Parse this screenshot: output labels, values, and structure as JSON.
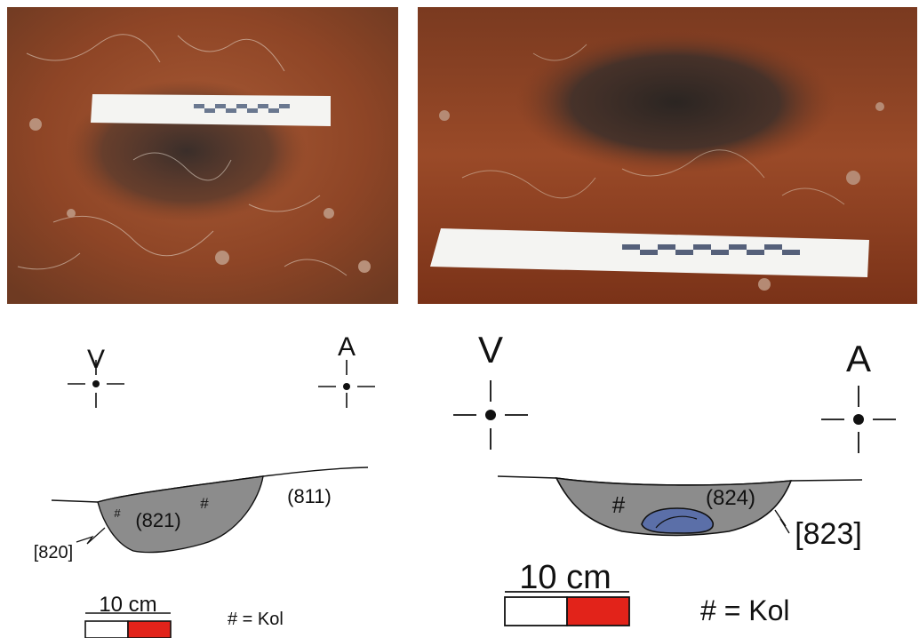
{
  "left_panel": {
    "direction_left": "V",
    "direction_right": "A",
    "layer_fill_label": "(821)",
    "layer_surround_label": "(811)",
    "cut_label": "[820]",
    "charcoal_marks": [
      "#",
      "#"
    ],
    "scale_label": "10 cm",
    "legend": "# = Kol"
  },
  "right_panel": {
    "direction_left": "V",
    "direction_right": "A",
    "layer_fill_label": "(824)",
    "cut_label": "[823]",
    "charcoal_marks": [
      "#"
    ],
    "scale_label": "10 cm",
    "legend": "# = Kol"
  },
  "colors": {
    "fill_gray": "#8c8c8c",
    "stone_blue": "#5b6fa8",
    "scale_red": "#e2231a",
    "soil_red": "#9c4a2a",
    "soil_dark": "#3a2a22"
  }
}
